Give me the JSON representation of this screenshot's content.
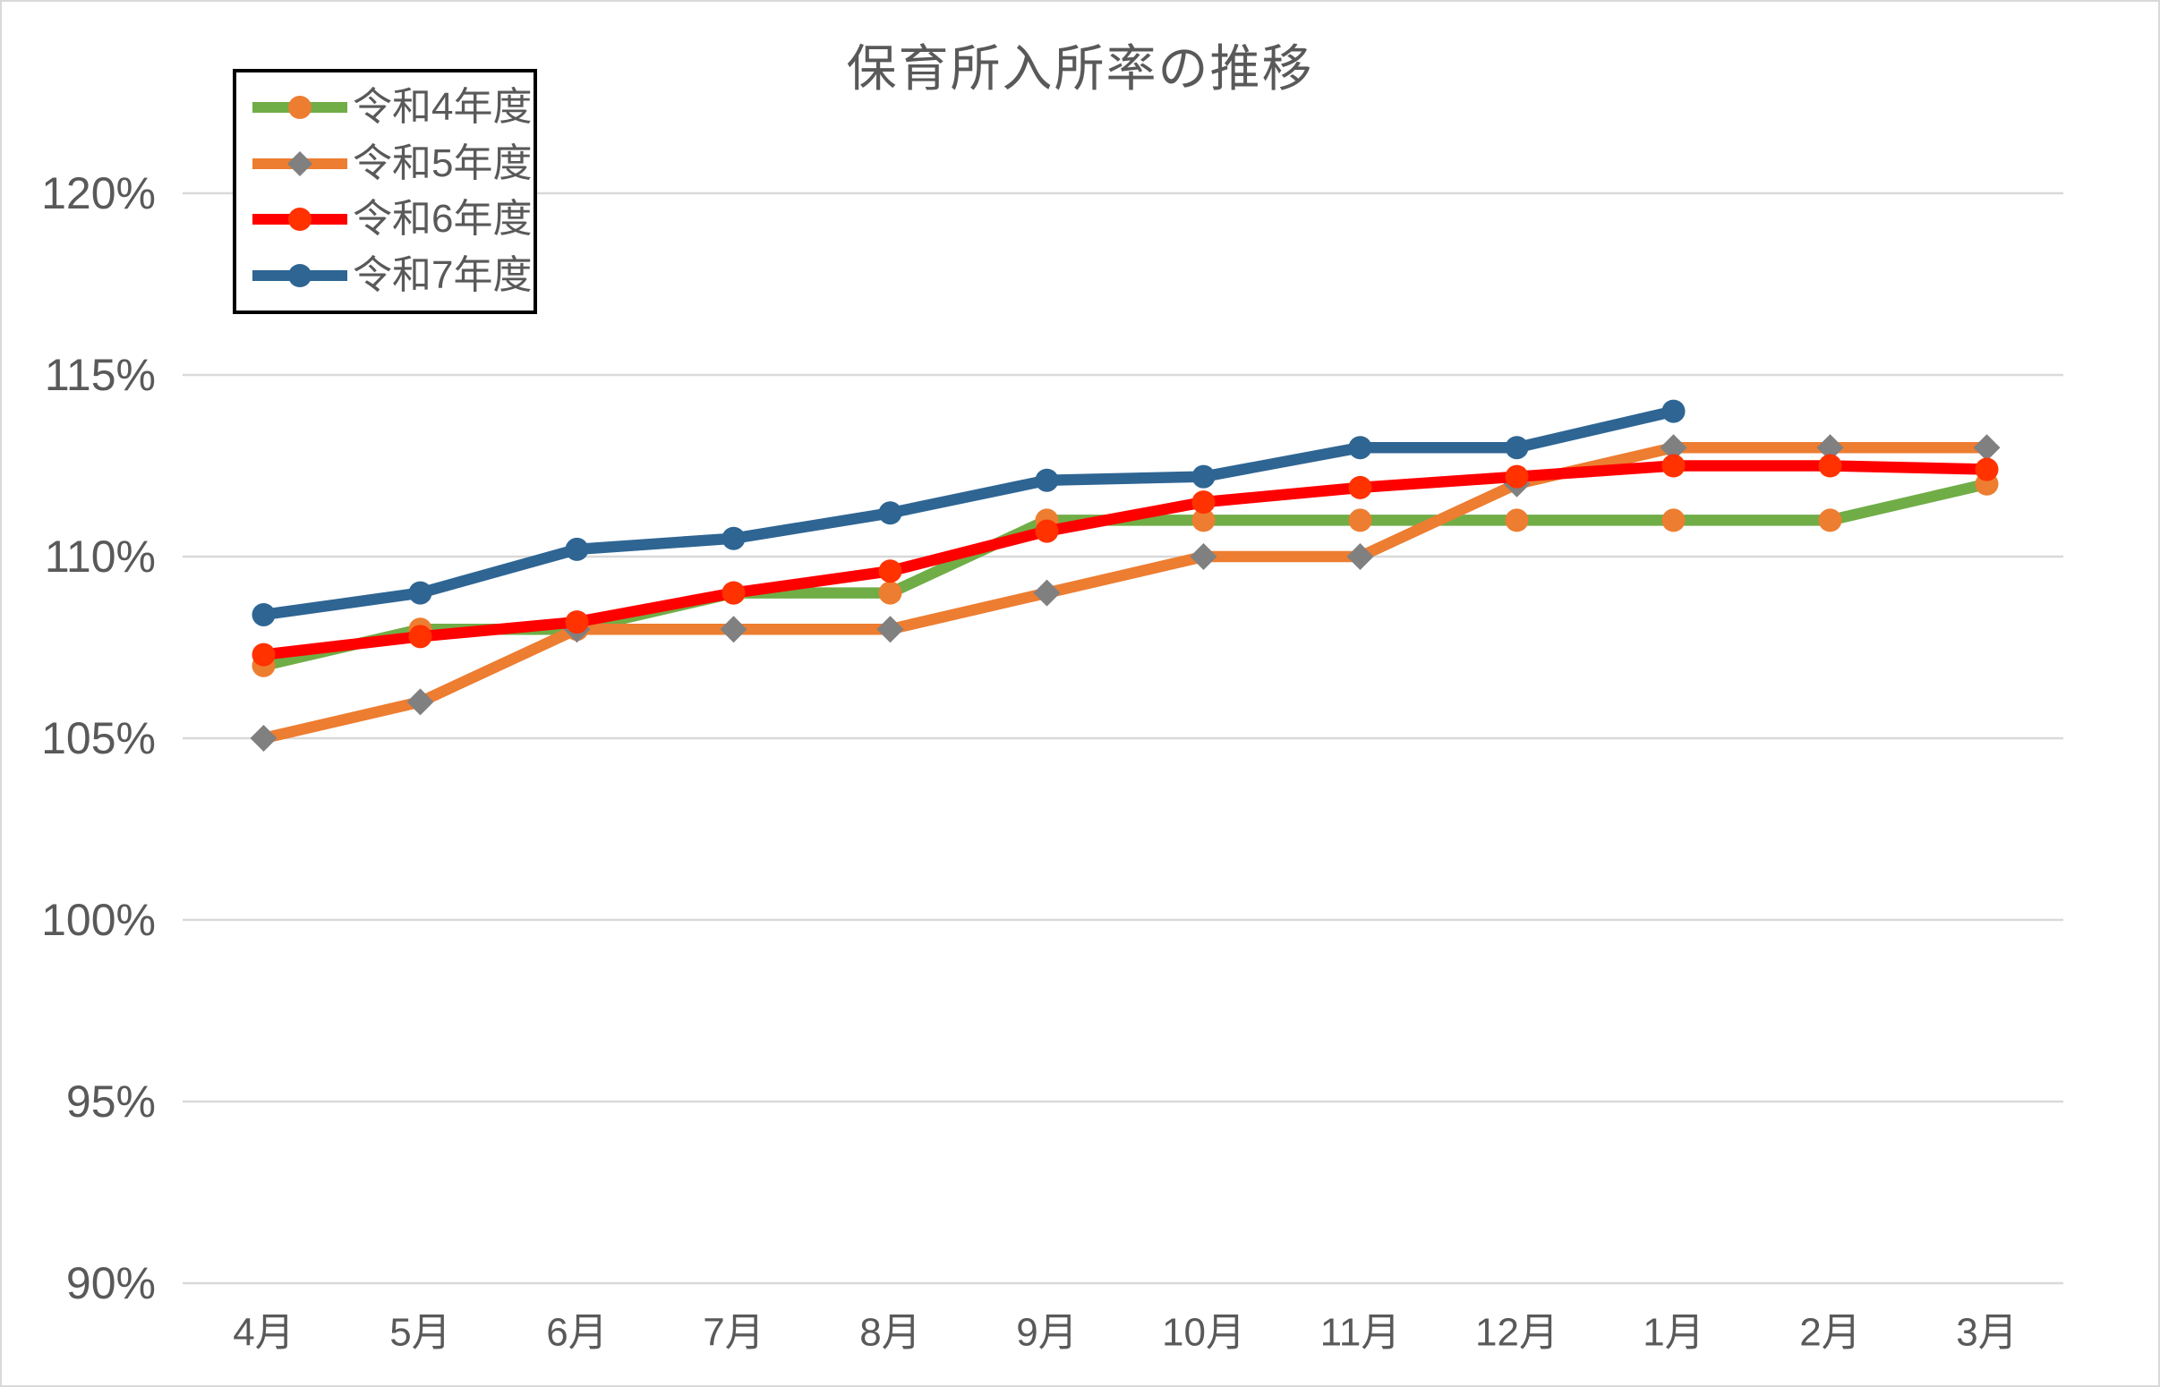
{
  "chart_data": {
    "type": "line",
    "title": "保育所入所率の推移",
    "categories": [
      "4月",
      "5月",
      "6月",
      "7月",
      "8月",
      "9月",
      "10月",
      "11月",
      "12月",
      "1月",
      "2月",
      "3月"
    ],
    "y_axis": {
      "min": 90,
      "max": 120,
      "step": 5,
      "tick_values": [
        90,
        95,
        100,
        105,
        110,
        115,
        120
      ],
      "tick_labels": [
        "90%",
        "95%",
        "100%",
        "105%",
        "110%",
        "115%",
        "120%"
      ]
    },
    "series": [
      {
        "name": "令和4年度",
        "line_color": "#70AD47",
        "marker": "circle",
        "marker_color": "#ED7D31",
        "values": [
          107.0,
          108.0,
          108.0,
          109.0,
          109.0,
          111.0,
          111.0,
          111.0,
          111.0,
          111.0,
          111.0,
          112.0
        ]
      },
      {
        "name": "令和5年度",
        "line_color": "#ED7D31",
        "marker": "diamond",
        "marker_color": "#808080",
        "values": [
          105.0,
          106.0,
          108.0,
          108.0,
          108.0,
          109.0,
          110.0,
          110.0,
          112.0,
          113.0,
          113.0,
          113.0
        ]
      },
      {
        "name": "令和6年度",
        "line_color": "#FF0000",
        "marker": "circle",
        "marker_color": "#FF3200",
        "values": [
          107.3,
          107.8,
          108.2,
          109.0,
          109.6,
          110.7,
          111.5,
          111.9,
          112.2,
          112.5,
          112.5,
          112.4
        ]
      },
      {
        "name": "令和7年度",
        "line_color": "#2E6593",
        "marker": "circle",
        "marker_color": "#2E6593",
        "values": [
          108.4,
          109.0,
          110.2,
          110.5,
          111.2,
          112.1,
          112.2,
          113.0,
          113.0,
          114.0,
          null,
          null
        ]
      }
    ],
    "grid_color": "#D9D9D9",
    "axis_label_color": "#595959",
    "legend_position": "top-left",
    "legend_border_color": "#000000",
    "background_color": "#FFFFFF"
  }
}
